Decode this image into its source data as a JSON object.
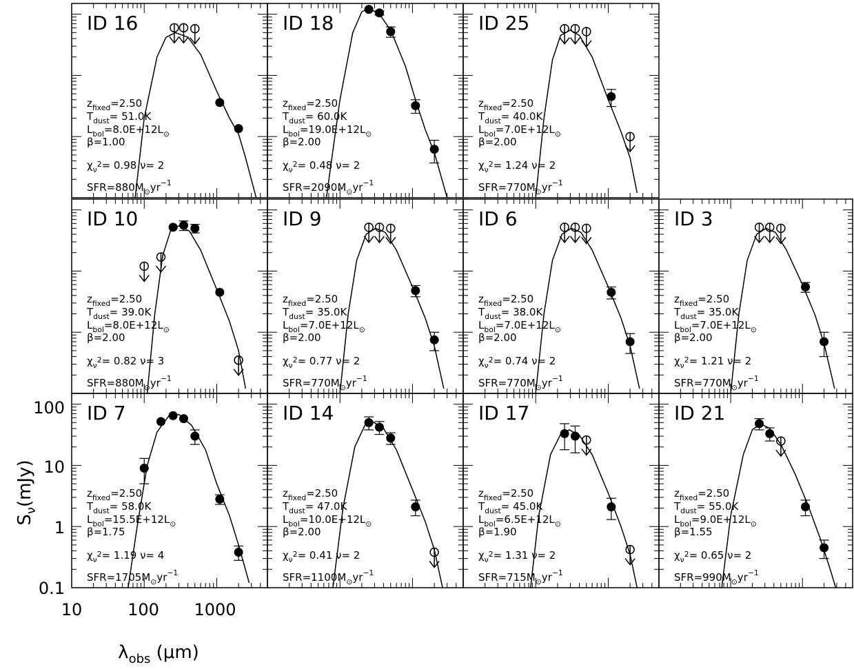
{
  "figure": {
    "ylabel_main": "S",
    "ylabel_sub": "ν",
    "ylabel_unit": "(mJy)",
    "xlabel_main": "λ",
    "xlabel_sub": "obs",
    "xlabel_unit": "(μm)",
    "x_tick_labels": [
      "10",
      "100",
      "1000"
    ],
    "y_tick_labels": [
      "0.1",
      "1",
      "10",
      "100"
    ],
    "axis_note": "x: observed wavelength, log scale 10-5000 um; y: flux density, log scale 0.1-150 mJy (bottom-left panel axes, shared by all panels)"
  },
  "chart_data": [
    {
      "id": "ID 16",
      "type": "scatter",
      "id_color": "#ff0000",
      "z": "2.50",
      "T": "51.0K",
      "L": "8.0E+12",
      "beta": "1.00",
      "chi": "0.98",
      "nu": "2",
      "sfr": "880",
      "xlim": [
        10,
        5000
      ],
      "ylim": [
        0.1,
        150
      ],
      "x_log": true,
      "y_log": true,
      "points": [
        {
          "x": 260,
          "y": 60,
          "ul": true
        },
        {
          "x": 350,
          "y": 60,
          "ul": true
        },
        {
          "x": 500,
          "y": 58,
          "ul": true
        },
        {
          "x": 1100,
          "y": 3.6
        },
        {
          "x": 2000,
          "y": 1.35
        }
      ],
      "model": [
        [
          75,
          0.1
        ],
        [
          100,
          2
        ],
        [
          150,
          20
        ],
        [
          200,
          42
        ],
        [
          270,
          50
        ],
        [
          400,
          42
        ],
        [
          600,
          22
        ],
        [
          1000,
          5.5
        ],
        [
          1500,
          2
        ],
        [
          2000,
          1.1
        ],
        [
          2500,
          0.45
        ],
        [
          3500,
          0.1
        ]
      ]
    },
    {
      "id": "ID 18",
      "type": "scatter",
      "id_color": "#ff0000",
      "z": "2.50",
      "T": "60.0K",
      "L": "19.0E+12",
      "beta": "2.00",
      "chi": "0.48",
      "nu": "2",
      "sfr": "2090",
      "xlim": [
        10,
        5000
      ],
      "ylim": [
        0.1,
        150
      ],
      "x_log": true,
      "y_log": true,
      "points": [
        {
          "x": 250,
          "y": 120
        },
        {
          "x": 350,
          "y": 105,
          "err": 8
        },
        {
          "x": 500,
          "y": 52,
          "err": 10
        },
        {
          "x": 1100,
          "y": 3.2,
          "err": 0.8
        },
        {
          "x": 2000,
          "y": 0.62,
          "err": 0.25
        }
      ],
      "model": [
        [
          65,
          0.1
        ],
        [
          100,
          4
        ],
        [
          150,
          50
        ],
        [
          200,
          110
        ],
        [
          250,
          125
        ],
        [
          350,
          100
        ],
        [
          500,
          55
        ],
        [
          800,
          14
        ],
        [
          1100,
          4
        ],
        [
          1500,
          1.3
        ],
        [
          2000,
          0.55
        ],
        [
          3000,
          0.1
        ]
      ]
    },
    {
      "id": "ID 25",
      "type": "scatter",
      "id_color": "#ff0000",
      "z": "2.50",
      "T": "40.0K",
      "L": "7.0E+12",
      "beta": "2.00",
      "chi": "1.24",
      "nu": "2",
      "sfr": "770",
      "xlim": [
        10,
        5000
      ],
      "ylim": [
        0.1,
        150
      ],
      "x_log": true,
      "y_log": true,
      "points": [
        {
          "x": 250,
          "y": 58,
          "ul": true
        },
        {
          "x": 350,
          "y": 58,
          "ul": true
        },
        {
          "x": 500,
          "y": 52,
          "ul": true
        },
        {
          "x": 1100,
          "y": 4.5,
          "err": 1.4
        },
        {
          "x": 2000,
          "y": 1.0,
          "ul": true
        }
      ],
      "model": [
        [
          100,
          0.1
        ],
        [
          130,
          2
        ],
        [
          170,
          18
        ],
        [
          220,
          45
        ],
        [
          300,
          55
        ],
        [
          400,
          45
        ],
        [
          600,
          20
        ],
        [
          1000,
          4
        ],
        [
          1500,
          1.2
        ],
        [
          2000,
          0.45
        ],
        [
          2500,
          0.12
        ]
      ]
    },
    {
      "id": "ID 10",
      "type": "scatter",
      "id_color": "#ff0000",
      "z": "2.50",
      "T": "39.0K",
      "L": "8.0E+12",
      "beta": "2.00",
      "chi": "0.82",
      "nu": "3",
      "sfr": "880",
      "xlim": [
        10,
        5000
      ],
      "ylim": [
        0.1,
        150
      ],
      "x_log": true,
      "y_log": true,
      "points": [
        {
          "x": 100,
          "y": 12,
          "ul": true
        },
        {
          "x": 170,
          "y": 17,
          "ul": true
        },
        {
          "x": 250,
          "y": 52
        },
        {
          "x": 350,
          "y": 56,
          "err": 10
        },
        {
          "x": 500,
          "y": 50,
          "err": 8
        },
        {
          "x": 1100,
          "y": 4.5
        },
        {
          "x": 2000,
          "y": 0.35,
          "ul": true
        }
      ],
      "model": [
        [
          110,
          0.1
        ],
        [
          140,
          2
        ],
        [
          180,
          18
        ],
        [
          230,
          45
        ],
        [
          300,
          55
        ],
        [
          420,
          45
        ],
        [
          600,
          22
        ],
        [
          1000,
          5
        ],
        [
          1500,
          1.5
        ],
        [
          2000,
          0.5
        ],
        [
          2500,
          0.12
        ]
      ]
    },
    {
      "id": "ID 9",
      "type": "scatter",
      "id_color": "#ff0000",
      "z": "2.50",
      "T": "35.0K",
      "L": "7.0E+12",
      "beta": "2.00",
      "chi": "0.77",
      "nu": "2",
      "sfr": "770",
      "xlim": [
        10,
        5000
      ],
      "ylim": [
        0.1,
        150
      ],
      "x_log": true,
      "y_log": true,
      "points": [
        {
          "x": 250,
          "y": 52,
          "ul": true
        },
        {
          "x": 350,
          "y": 52,
          "ul": true
        },
        {
          "x": 500,
          "y": 50,
          "ul": true
        },
        {
          "x": 1100,
          "y": 4.8,
          "err": 1
        },
        {
          "x": 2000,
          "y": 0.75,
          "err": 0.25
        }
      ],
      "model": [
        [
          100,
          0.1
        ],
        [
          130,
          2
        ],
        [
          170,
          15
        ],
        [
          230,
          40
        ],
        [
          310,
          50
        ],
        [
          420,
          43
        ],
        [
          600,
          22
        ],
        [
          1000,
          5.5
        ],
        [
          1500,
          1.7
        ],
        [
          2000,
          0.6
        ],
        [
          2700,
          0.12
        ]
      ]
    },
    {
      "id": "ID 6",
      "type": "scatter",
      "id_color": "#ff0000",
      "z": "2.50",
      "T": "38.0K",
      "L": "7.0E+12",
      "beta": "2.00",
      "chi": "0.74",
      "nu": "2",
      "sfr": "770",
      "xlim": [
        10,
        5000
      ],
      "ylim": [
        0.1,
        150
      ],
      "x_log": true,
      "y_log": true,
      "points": [
        {
          "x": 250,
          "y": 52,
          "ul": true
        },
        {
          "x": 350,
          "y": 52,
          "ul": true
        },
        {
          "x": 500,
          "y": 50,
          "ul": true
        },
        {
          "x": 1100,
          "y": 4.5,
          "err": 1
        },
        {
          "x": 2000,
          "y": 0.7,
          "err": 0.25
        }
      ],
      "model": [
        [
          100,
          0.1
        ],
        [
          130,
          2
        ],
        [
          170,
          15
        ],
        [
          230,
          40
        ],
        [
          310,
          50
        ],
        [
          420,
          43
        ],
        [
          600,
          22
        ],
        [
          1000,
          5.5
        ],
        [
          1500,
          1.7
        ],
        [
          2000,
          0.6
        ],
        [
          2700,
          0.12
        ]
      ]
    },
    {
      "id": "ID 3",
      "type": "scatter",
      "id_color": "#ff0000",
      "z": "2.50",
      "T": "35.0K",
      "L": "7.0E+12",
      "beta": "2.00",
      "chi": "1.21",
      "nu": "2",
      "sfr": "770",
      "xlim": [
        10,
        5000
      ],
      "ylim": [
        0.1,
        150
      ],
      "x_log": true,
      "y_log": true,
      "points": [
        {
          "x": 250,
          "y": 52,
          "ul": true
        },
        {
          "x": 350,
          "y": 52,
          "ul": true
        },
        {
          "x": 500,
          "y": 50,
          "ul": true
        },
        {
          "x": 1100,
          "y": 5.5,
          "err": 1
        },
        {
          "x": 2000,
          "y": 0.7,
          "err": 0.3
        }
      ],
      "model": [
        [
          100,
          0.1
        ],
        [
          130,
          2
        ],
        [
          170,
          15
        ],
        [
          230,
          40
        ],
        [
          310,
          50
        ],
        [
          420,
          43
        ],
        [
          600,
          22
        ],
        [
          1000,
          6
        ],
        [
          1500,
          1.9
        ],
        [
          2000,
          0.65
        ],
        [
          2800,
          0.12
        ]
      ]
    },
    {
      "id": "ID 7",
      "type": "scatter",
      "id_color": "#000000",
      "z": "2.50",
      "T": "58.0K",
      "L": "15.5E+12",
      "beta": "1.75",
      "chi": "1.19",
      "nu": "4",
      "sfr": "1705",
      "xlim": [
        10,
        5000
      ],
      "ylim": [
        0.1,
        150
      ],
      "x_log": true,
      "y_log": true,
      "points": [
        {
          "x": 100,
          "y": 9,
          "err": 4
        },
        {
          "x": 170,
          "y": 52
        },
        {
          "x": 250,
          "y": 65
        },
        {
          "x": 350,
          "y": 58
        },
        {
          "x": 500,
          "y": 30,
          "err": 8
        },
        {
          "x": 1100,
          "y": 2.8,
          "err": 0.5
        },
        {
          "x": 2000,
          "y": 0.38,
          "err": 0.1
        }
      ],
      "model": [
        [
          60,
          0.1
        ],
        [
          80,
          1
        ],
        [
          110,
          10
        ],
        [
          150,
          35
        ],
        [
          220,
          65
        ],
        [
          300,
          68
        ],
        [
          450,
          45
        ],
        [
          700,
          18
        ],
        [
          1000,
          5
        ],
        [
          1500,
          1.5
        ],
        [
          2000,
          0.5
        ],
        [
          2800,
          0.12
        ]
      ]
    },
    {
      "id": "ID 14",
      "type": "scatter",
      "id_color": "#000000",
      "z": "2.50",
      "T": "47.0K",
      "L": "10.0E+12",
      "beta": "2.00",
      "chi": "0.41",
      "nu": "2",
      "sfr": "1100",
      "xlim": [
        10,
        5000
      ],
      "ylim": [
        0.1,
        150
      ],
      "x_log": true,
      "y_log": true,
      "points": [
        {
          "x": 250,
          "y": 50,
          "err": 12
        },
        {
          "x": 350,
          "y": 42,
          "err": 10
        },
        {
          "x": 500,
          "y": 28,
          "err": 6
        },
        {
          "x": 1100,
          "y": 2.1,
          "err": 0.6
        },
        {
          "x": 2000,
          "y": 0.38,
          "ul": true
        }
      ],
      "model": [
        [
          80,
          0.1
        ],
        [
          110,
          2
        ],
        [
          160,
          20
        ],
        [
          220,
          45
        ],
        [
          280,
          52
        ],
        [
          400,
          40
        ],
        [
          600,
          18
        ],
        [
          1000,
          4
        ],
        [
          1500,
          1.2
        ],
        [
          2000,
          0.42
        ],
        [
          2600,
          0.1
        ]
      ]
    },
    {
      "id": "ID 17",
      "type": "scatter",
      "id_color": "#000000",
      "z": "2.50",
      "T": "45.0K",
      "L": "6.5E+12",
      "beta": "1.90",
      "chi": "1.31",
      "nu": "2",
      "sfr": "715",
      "xlim": [
        10,
        5000
      ],
      "ylim": [
        0.1,
        150
      ],
      "x_log": true,
      "y_log": true,
      "points": [
        {
          "x": 250,
          "y": 33,
          "err": 15
        },
        {
          "x": 350,
          "y": 30,
          "err": 14
        },
        {
          "x": 500,
          "y": 26,
          "ul": true
        },
        {
          "x": 1100,
          "y": 2.1,
          "err": 0.8
        },
        {
          "x": 2000,
          "y": 0.42,
          "ul": true
        }
      ],
      "model": [
        [
          85,
          0.1
        ],
        [
          110,
          1.5
        ],
        [
          160,
          15
        ],
        [
          220,
          32
        ],
        [
          290,
          38
        ],
        [
          400,
          31
        ],
        [
          600,
          15
        ],
        [
          1000,
          3.5
        ],
        [
          1500,
          1
        ],
        [
          2000,
          0.35
        ],
        [
          2500,
          0.1
        ]
      ]
    },
    {
      "id": "ID 21",
      "type": "scatter",
      "id_color": "#000000",
      "z": "2.50",
      "T": "55.0K",
      "L": "9.0E+12",
      "beta": "1.55",
      "chi": "0.65",
      "nu": "2",
      "sfr": "990",
      "xlim": [
        10,
        5000
      ],
      "ylim": [
        0.1,
        150
      ],
      "x_log": true,
      "y_log": true,
      "points": [
        {
          "x": 250,
          "y": 48,
          "err": 10
        },
        {
          "x": 350,
          "y": 33,
          "err": 8
        },
        {
          "x": 500,
          "y": 25,
          "ul": true
        },
        {
          "x": 1100,
          "y": 2.1,
          "err": 0.6
        },
        {
          "x": 2000,
          "y": 0.45,
          "err": 0.15
        }
      ],
      "model": [
        [
          75,
          0.1
        ],
        [
          100,
          1.5
        ],
        [
          150,
          15
        ],
        [
          200,
          38
        ],
        [
          260,
          48
        ],
        [
          350,
          40
        ],
        [
          500,
          22
        ],
        [
          800,
          7
        ],
        [
          1200,
          2.2
        ],
        [
          1800,
          0.6
        ],
        [
          2500,
          0.18
        ],
        [
          2900,
          0.1
        ]
      ]
    }
  ]
}
